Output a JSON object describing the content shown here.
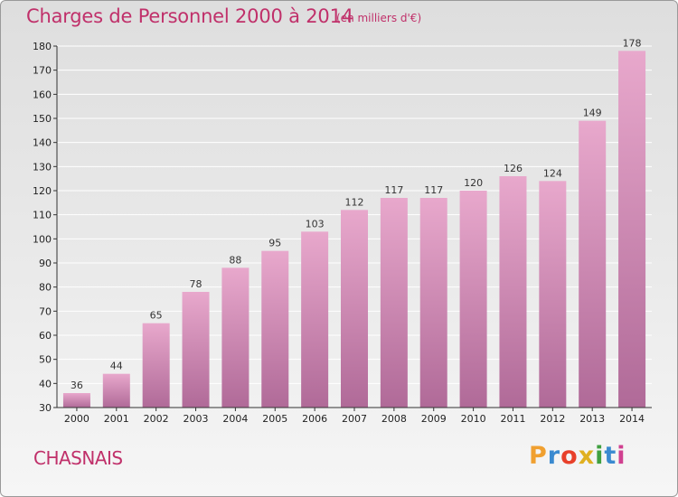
{
  "title": "Charges de Personnel 2000 à 2014",
  "subtitle": "(en milliers d'€)",
  "commune": "CHASNAIS",
  "logo_text": "Proxiti",
  "colors": {
    "title": "#c0306a",
    "bar_top": "#e8a8cc",
    "bar_bottom": "#b06a98",
    "grid": "#ffffff"
  },
  "chart_data": {
    "type": "bar",
    "categories": [
      "2000",
      "2001",
      "2002",
      "2003",
      "2004",
      "2005",
      "2006",
      "2007",
      "2008",
      "2009",
      "2010",
      "2011",
      "2012",
      "2013",
      "2014"
    ],
    "values": [
      36,
      44,
      65,
      78,
      88,
      95,
      103,
      112,
      117,
      117,
      120,
      126,
      124,
      149,
      178
    ],
    "title": "Charges de Personnel 2000 à 2014",
    "ylim": [
      30,
      180
    ],
    "yticks": [
      30,
      40,
      50,
      60,
      70,
      80,
      90,
      100,
      110,
      120,
      130,
      140,
      150,
      160,
      170,
      180
    ],
    "grid": true,
    "data_labels": true
  }
}
